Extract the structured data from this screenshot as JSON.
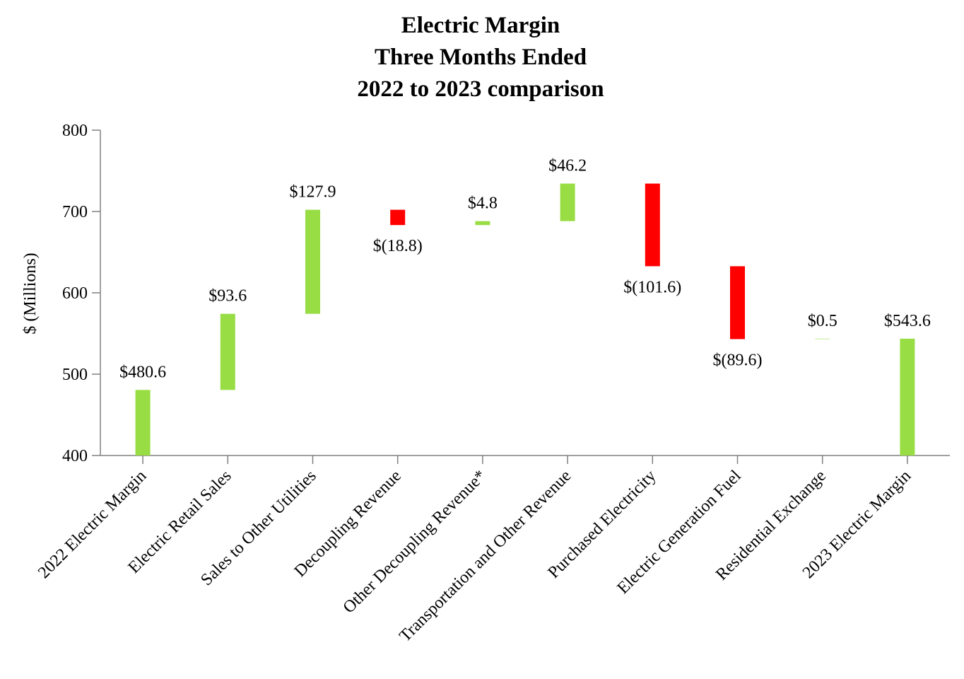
{
  "chart_data": {
    "type": "waterfall",
    "title_lines": [
      "Electric Margin",
      "Three Months Ended",
      "2022 to 2023 comparison"
    ],
    "ylabel": "$ (Millions)",
    "ylim": [
      400,
      800
    ],
    "yticks": [
      "400",
      "500",
      "600",
      "700",
      "800"
    ],
    "categories": [
      "2022 Electric Margin",
      "Electric Retail Sales",
      "Sales to Other Utilities",
      "Decoupling Revenue",
      "Other Decoupling Revenue*",
      "Transportation and Other Revenue",
      "Purchased Electricity",
      "Electric Generation Fuel",
      "Residential Exchange",
      "2023 Electric Margin"
    ],
    "values": [
      480.6,
      93.6,
      127.9,
      -18.8,
      4.8,
      46.2,
      -101.6,
      -89.6,
      0.5,
      543.6
    ],
    "kinds": [
      "total",
      "delta",
      "delta",
      "delta",
      "delta",
      "delta",
      "delta",
      "delta",
      "delta",
      "total"
    ],
    "labels": [
      "$480.6",
      "$93.6",
      "$127.9",
      "$(18.8)",
      "$4.8",
      "$46.2",
      "$(101.6)",
      "$(89.6)",
      "$0.5",
      "$543.6"
    ],
    "colors": {
      "increase": "#99dd44",
      "decrease": "#ff0000",
      "total": "#99dd44",
      "axis": "#808080"
    }
  }
}
